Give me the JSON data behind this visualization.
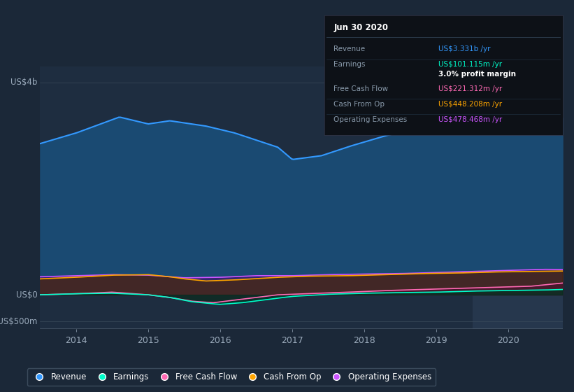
{
  "bg_color": "#1b2838",
  "plot_bg_color": "#1e2d40",
  "highlight_bg": "#26374d",
  "x_ticks": [
    2014,
    2015,
    2016,
    2017,
    2018,
    2019,
    2020
  ],
  "tooltip_title": "Jun 30 2020",
  "tooltip_items": [
    {
      "label": "Revenue",
      "value": "US$3.331b /yr",
      "color": "#3399ff"
    },
    {
      "label": "Earnings",
      "value": "US$101.115m /yr",
      "color": "#00ffcc"
    },
    {
      "label": "",
      "value": "3.0% profit margin",
      "color": "#ffffff"
    },
    {
      "label": "Free Cash Flow",
      "value": "US$221.312m /yr",
      "color": "#ff69b4"
    },
    {
      "label": "Cash From Op",
      "value": "US$448.208m /yr",
      "color": "#ffa500"
    },
    {
      "label": "Operating Expenses",
      "value": "US$478.468m /yr",
      "color": "#cc55ff"
    }
  ],
  "legend_items": [
    {
      "label": "Revenue",
      "color": "#3399ff"
    },
    {
      "label": "Earnings",
      "color": "#00ffcc"
    },
    {
      "label": "Free Cash Flow",
      "color": "#ff69b4"
    },
    {
      "label": "Cash From Op",
      "color": "#ffa500"
    },
    {
      "label": "Operating Expenses",
      "color": "#cc55ff"
    }
  ],
  "revenue_color": "#3399ff",
  "revenue_fill": "#1a4a70",
  "earnings_color": "#00ffcc",
  "free_cash_color": "#ff69b4",
  "cash_from_op_color": "#ffa500",
  "op_expenses_color": "#cc55ff",
  "ylabel_4b": "US$4b",
  "ylabel_0": "US$0",
  "ylabel_neg500m": "-US$500m"
}
